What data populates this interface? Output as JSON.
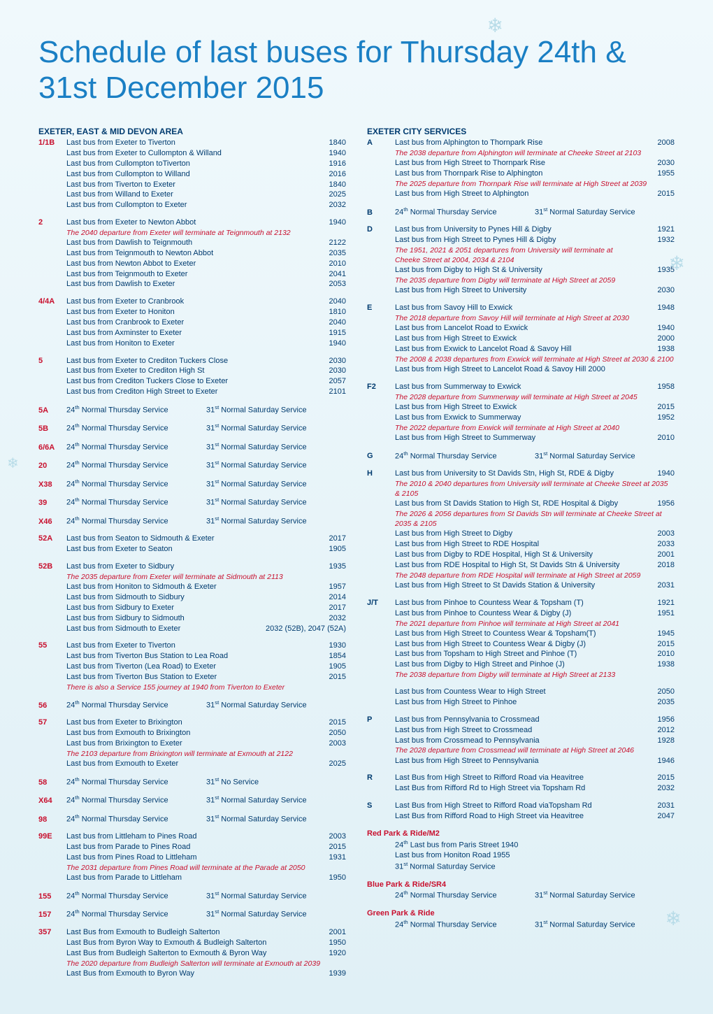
{
  "title": "Schedule of last buses for Thursday 24th & 31st December 2015",
  "left": {
    "header": "EXETER,  EAST & MID DEVON AREA",
    "blocks": [
      {
        "code": "1/1B",
        "codeColor": "red",
        "rows": [
          {
            "t": "Last bus from Exeter to Tiverton",
            "time": "1840"
          },
          {
            "t": "Last bus from Exeter to Cullompton & Willand",
            "time": "1940"
          },
          {
            "t": "Last bus from Cullompton toTiverton",
            "time": "1916"
          },
          {
            "t": "Last bus from Cullompton to Willand",
            "time": "2016"
          },
          {
            "t": "Last bus from Tiverton to Exeter",
            "time": "1840"
          },
          {
            "t": "Last bus from Willand to Exeter",
            "time": "2025"
          },
          {
            "t": "Last bus from Cullompton to Exeter",
            "time": "2032"
          }
        ]
      },
      {
        "code": "2",
        "codeColor": "red",
        "rows": [
          {
            "t": "Last bus from Exeter to Newton Abbot",
            "time": "1940"
          },
          {
            "note": "The 2040 departure from Exeter will terminate at Teignmouth at 2132"
          },
          {
            "t": "Last bus from Dawlish to Teignmouth",
            "time": "2122"
          },
          {
            "t": "Last bus from Teignmouth to Newton Abbot",
            "time": "2035"
          },
          {
            "t": "Last bus from Newton Abbot to Exeter",
            "time": "2010"
          },
          {
            "t": "Last bus from Teignmouth to Exeter",
            "time": "2041"
          },
          {
            "t": "Last bus from Dawlish to Exeter",
            "time": "2053"
          }
        ]
      },
      {
        "code": "4/4A",
        "codeColor": "red",
        "rows": [
          {
            "t": "Last bus from Exeter to Cranbrook",
            "time": "2040"
          },
          {
            "t": "Last bus from Exeter to Honiton",
            "time": "1810"
          },
          {
            "t": "Last bus from Cranbrook to Exeter",
            "time": "2040"
          },
          {
            "t": "Last bus from Axminster to Exeter",
            "time": "1915"
          },
          {
            "t": "Last bus from Honiton to Exeter",
            "time": "1940"
          }
        ]
      },
      {
        "code": "5",
        "codeColor": "red",
        "rows": [
          {
            "t": "Last bus from Exeter to Crediton Tuckers Close",
            "time": "2030"
          },
          {
            "t": "Last bus from Exeter to Crediton High St",
            "time": "2030"
          },
          {
            "t": "Last bus from Crediton Tuckers Close to Exeter",
            "time": "2057"
          },
          {
            "t": "Last bus from Crediton High Street to Exeter",
            "time": "2101"
          }
        ]
      },
      {
        "code": "5A",
        "codeColor": "red",
        "ns": true
      },
      {
        "code": "5B",
        "codeColor": "red",
        "ns": true
      },
      {
        "code": "6/6A",
        "codeColor": "red",
        "ns": true
      },
      {
        "code": "20",
        "codeColor": "red",
        "ns": true
      },
      {
        "code": "X38",
        "codeColor": "red",
        "ns": true
      },
      {
        "code": "39",
        "codeColor": "red",
        "ns": true
      },
      {
        "code": "X46",
        "codeColor": "red",
        "ns": true
      },
      {
        "code": "52A",
        "codeColor": "red",
        "rows": [
          {
            "t": "Last bus from Seaton to Sidmouth & Exeter",
            "time": "2017"
          },
          {
            "t": "Last bus from Exeter to Seaton",
            "time": "1905"
          }
        ]
      },
      {
        "code": "52B",
        "codeColor": "red",
        "rows": [
          {
            "t": "Last bus from Exeter to Sidbury",
            "time": "1935"
          },
          {
            "note": "The 2035 departure from Exeter will terminate at Sidmouth at 2113"
          },
          {
            "t": "Last bus from Honiton to Sidmouth & Exeter",
            "time": "1957"
          },
          {
            "t": "Last bus from Sidmouth to Sidbury",
            "time": "2014"
          },
          {
            "t": "Last bus from Sidbury to Exeter",
            "time": "2017"
          },
          {
            "t": "Last bus from Sidbury to Sidmouth",
            "time": "2032"
          },
          {
            "t": "Last bus from Sidmouth to Exeter",
            "time": "2032 (52B), 2047 (52A)",
            "wide": true
          }
        ]
      },
      {
        "code": "55",
        "codeColor": "red",
        "rows": [
          {
            "t": "Last bus from Exeter to Tiverton",
            "time": "1930"
          },
          {
            "t": "Last bus from Tiverton Bus Station to Lea Road",
            "time": "1854"
          },
          {
            "t": "Last bus from Tiverton (Lea Road) to Exeter",
            "time": "1905"
          },
          {
            "t": "Last bus from Tiverton Bus Station to Exeter",
            "time": "2015"
          },
          {
            "note": "There is also a Service 155 journey at 1940 from Tiverton to Exeter"
          }
        ]
      },
      {
        "code": "56",
        "codeColor": "red",
        "ns": true
      },
      {
        "code": "57",
        "codeColor": "red",
        "rows": [
          {
            "t": "Last bus from Exeter to Brixington",
            "time": "2015"
          },
          {
            "t": "Last bus from Exmouth to Brixington",
            "time": "2050"
          },
          {
            "t": "Last bus from Brixington to Exeter",
            "time": "2003"
          },
          {
            "note": "The 2103 departure from Brixington will terminate at Exmouth at 2122"
          },
          {
            "t": "Last bus from Exmouth to Exeter",
            "time": "2025"
          }
        ]
      },
      {
        "code": "58",
        "codeColor": "red",
        "nsCustom": {
          "left": "24ᵗʰ Normal Thursday Service",
          "right": "31ˢᵗ No Service"
        }
      },
      {
        "code": "X64",
        "codeColor": "red",
        "ns": true
      },
      {
        "code": "98",
        "codeColor": "red",
        "ns": true
      },
      {
        "code": "99E",
        "codeColor": "red",
        "rows": [
          {
            "t": "Last bus from Littleham to Pines Road",
            "time": "2003"
          },
          {
            "t": "Last bus from Parade to Pines Road",
            "time": "2015"
          },
          {
            "t": "Last bus from Pines Road to Littleham",
            "time": "1931"
          },
          {
            "note": "The 2031 departure from Pines Road will terminate at the Parade at 2050"
          },
          {
            "t": "Last bus from Parade to Littleham",
            "time": "1950"
          }
        ]
      },
      {
        "code": "155",
        "codeColor": "red",
        "ns": true
      },
      {
        "code": "157",
        "codeColor": "red",
        "ns": true
      },
      {
        "code": "357",
        "codeColor": "red",
        "rows": [
          {
            "t": "Last Bus from Exmouth to Budleigh Salterton",
            "time": "2001"
          },
          {
            "t": "Last Bus from Byron Way to Exmouth & Budleigh Salterton",
            "time": "1950"
          },
          {
            "t": "Last Bus from Budleigh Salterton to Exmouth & Byron Way",
            "time": "1920"
          },
          {
            "note": "The 2020 departure from Budleigh Salterton will terminate at Exmouth at 2039"
          },
          {
            "t": "Last Bus from Exmouth to Byron Way",
            "time": "1939"
          }
        ]
      }
    ]
  },
  "right": {
    "header": "EXETER CITY SERVICES",
    "blocks": [
      {
        "code": "A",
        "codeColor": "blue",
        "rows": [
          {
            "t": "Last bus from Alphington to Thornpark Rise",
            "time": "2008"
          },
          {
            "note": "The 2038 departure from Alphington will terminate at Cheeke Street at 2103"
          },
          {
            "t": "Last bus from High Street to Thornpark Rise",
            "time": "2030"
          },
          {
            "t": "Last bus from Thornpark Rise to Alphington",
            "time": "1955"
          },
          {
            "note": "The 2025 departure from Thornpark Rise will terminate at High Street at 2039"
          },
          {
            "t": "Last bus from High Street to Alphington",
            "time": "2015"
          }
        ]
      },
      {
        "code": "B",
        "codeColor": "blue",
        "ns": true
      },
      {
        "code": "D",
        "codeColor": "blue",
        "rows": [
          {
            "t": "Last bus from University to Pynes Hill & Digby",
            "time": "1921"
          },
          {
            "t": "Last bus from High Street to Pynes Hill &  Digby",
            "time": "1932"
          },
          {
            "note": "The 1951, 2021 & 2051 departures from University will terminate at"
          },
          {
            "note": "Cheeke Street at 2004, 2034 & 2104"
          },
          {
            "t": "Last bus from Digby to High St & University",
            "time": "1935"
          },
          {
            "note": "The 2035 departure from Digby will terminate at High Street at 2059"
          },
          {
            "t": "Last bus from High Street to University",
            "time": "2030"
          }
        ]
      },
      {
        "code": "E",
        "codeColor": "blue",
        "rows": [
          {
            "t": "Last bus from Savoy Hill to Exwick",
            "time": "1948"
          },
          {
            "note": "The 2018 departure from Savoy Hill will terminate at High Street at 2030"
          },
          {
            "t": "Last bus from Lancelot Road to Exwick",
            "time": "1940"
          },
          {
            "t": "Last bus from High Street to Exwick",
            "time": "2000"
          },
          {
            "t": "Last bus from Exwick to Lancelot Road & Savoy Hill",
            "time": "1938"
          },
          {
            "note": "The 2008 & 2038 departures from Exwick will terminate at High Street at 2030 & 2100"
          },
          {
            "t": "Last bus from High Street to Lancelot Road & Savoy Hill 2000",
            "time": ""
          }
        ]
      },
      {
        "code": "F2",
        "codeColor": "blue",
        "rows": [
          {
            "t": "Last bus from Summerway to Exwick",
            "time": "1958"
          },
          {
            "note": "The 2028 departure from Summerway will terminate at High Street at 2045"
          },
          {
            "t": "Last bus from High Street to Exwick",
            "time": "2015"
          },
          {
            "t": "Last bus from Exwick to Summerway",
            "time": "1952"
          },
          {
            "note": "The 2022 departure from Exwick will terminate at High Street at 2040"
          },
          {
            "t": "Last bus from High Street to Summerway",
            "time": "2010"
          }
        ]
      },
      {
        "code": "G",
        "codeColor": "blue",
        "ns": true
      },
      {
        "code": "H",
        "codeColor": "blue",
        "rows": [
          {
            "t": "Last bus from University to St Davids Stn, High St, RDE & Digby",
            "time": "1940"
          },
          {
            "note": "The 2010 & 2040 departures from University will terminate at Cheeke Street at 2035 & 2105"
          },
          {
            "t": "Last bus from St Davids Station to High St, RDE Hospital & Digby",
            "time": "1956"
          },
          {
            "note": "The 2026 & 2056 departures from St Davids Stn will terminate at Cheeke Street at 2035 & 2105"
          },
          {
            "t": "Last bus from High Street to Digby",
            "time": "2003"
          },
          {
            "t": "Last bus from High Street to RDE Hospital",
            "time": "2033"
          },
          {
            "t": "Last bus from Digby to RDE Hospital, High St & University",
            "time": "2001"
          },
          {
            "t": "Last bus from RDE Hospital to High St, St Davids Stn & University",
            "time": "2018"
          },
          {
            "note": "The 2048 departure from RDE Hospital will terminate at High Street at  2059"
          },
          {
            "t": "Last bus from High Street to St Davids Station & University",
            "time": "2031"
          }
        ]
      },
      {
        "code": "J/T",
        "codeColor": "blue",
        "rows": [
          {
            "t": "Last bus from Pinhoe to Countess Wear & Topsham (T)",
            "time": "1921"
          },
          {
            "t": "Last bus from Pinhoe to Countess Wear & Digby (J)",
            "time": "1951"
          },
          {
            "note": "The 2021 departure from Pinhoe will terminate at High Street at 2041"
          },
          {
            "t": "Last bus from High Street to Countess Wear & Topsham(T)",
            "time": "1945"
          },
          {
            "t": "Last bus from High Street to Countess Wear & Digby (J)",
            "time": "2015"
          },
          {
            "t": "Last bus from Topsham to High Street and Pinhoe (T)",
            "time": "2010"
          },
          {
            "t": "Last bus from Digby to High Street and Pinhoe (J)",
            "time": "1938"
          },
          {
            "note": "The 2038 departure from Digby will terminate at High Street at 2133"
          }
        ]
      },
      {
        "code": "",
        "codeColor": "blue",
        "rows": [
          {
            "t": "Last bus from Countess Wear to High Street",
            "time": "2050"
          },
          {
            "t": "Last bus from High Street to Pinhoe",
            "time": "2035"
          }
        ]
      },
      {
        "code": "P",
        "codeColor": "blue",
        "rows": [
          {
            "t": "Last bus from Pennsylvania to Crossmead",
            "time": "1956"
          },
          {
            "t": "Last bus from High Street to Crossmead",
            "time": "2012"
          },
          {
            "t": "Last bus from Crossmead to Pennsylvania",
            "time": "1928"
          },
          {
            "note": "The 2028 departure from Crossmead will terminate at High Street at 2046"
          },
          {
            "t": "Last bus from High Street to Pennsylvania",
            "time": "1946"
          }
        ]
      },
      {
        "code": "R",
        "codeColor": "blue",
        "rows": [
          {
            "t": "Last Bus from High Street to Rifford Road via Heavitree",
            "time": "2015"
          },
          {
            "t": "Last Bus from Rifford Rd to High Street via Topsham Rd",
            "time": "2032"
          }
        ]
      },
      {
        "code": "S",
        "codeColor": "blue",
        "rows": [
          {
            "t": "Last Bus from High Street to Rifford Road viaTopsham Rd",
            "time": "2031"
          },
          {
            "t": "Last Bus from Rifford Road to High Street via Heavitree",
            "time": "2047"
          }
        ]
      }
    ],
    "extras": [
      {
        "header": "Red Park & Ride/M2",
        "lines": [
          "24ᵗʰ Last bus from Paris Street 1940",
          "        Last bus from Honiton Road 1955",
          "31ˢᵗ  Normal Saturday Service"
        ]
      },
      {
        "header": "Blue Park & Ride/SR4",
        "ns": true
      },
      {
        "header": "Green Park & Ride",
        "ns": true
      }
    ]
  },
  "nsLeft": "24ᵗʰ Normal Thursday Service",
  "nsRight": "31ˢᵗ Normal Saturday Service"
}
